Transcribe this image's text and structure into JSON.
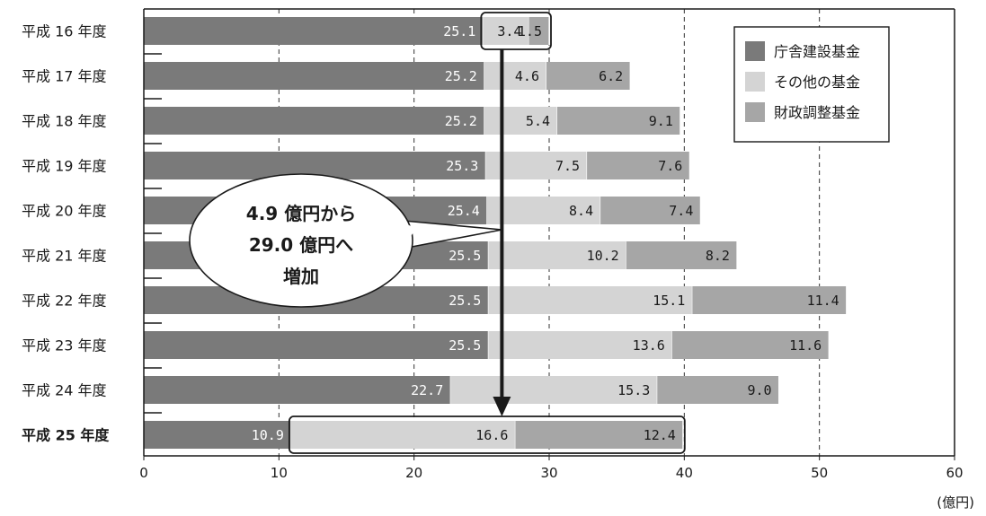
{
  "chart_data": {
    "type": "bar",
    "orientation": "horizontal",
    "stacked": true,
    "categories": [
      "平成 16 年度",
      "平成 17 年度",
      "平成 18 年度",
      "平成 19 年度",
      "平成 20 年度",
      "平成 21 年度",
      "平成 22 年度",
      "平成 23 年度",
      "平成 24 年度",
      "平成 25 年度"
    ],
    "highlight_category": "平成 25 年度",
    "series": [
      {
        "name": "庁舎建設基金",
        "color": "#7a7a7a",
        "label_color": "#ffffff",
        "values": [
          25.1,
          25.2,
          25.2,
          25.3,
          25.4,
          25.5,
          25.5,
          25.5,
          22.7,
          10.9
        ],
        "labels": [
          "25.1",
          "25.2",
          "25.2",
          "25.3",
          "25.4",
          "25.5",
          "25.5",
          "25.5",
          "22.7",
          "10.9"
        ]
      },
      {
        "name": "その他の基金",
        "color": "#d4d4d4",
        "label_color": "#1a1a1a",
        "values": [
          3.4,
          4.6,
          5.4,
          7.5,
          8.4,
          10.2,
          15.1,
          13.6,
          15.3,
          16.6
        ],
        "labels": [
          "3.4",
          "4.6",
          "5.4",
          "7.5",
          "8.4",
          "10.2",
          "15.1",
          "13.6",
          "15.3",
          "16.6"
        ]
      },
      {
        "name": "財政調整基金",
        "color": "#a6a6a6",
        "label_color": "#1a1a1a",
        "values": [
          1.5,
          6.2,
          9.1,
          7.6,
          7.4,
          8.2,
          11.4,
          11.6,
          9.0,
          12.4
        ],
        "labels": [
          "1.5",
          "6.2",
          "9.1",
          "7.6",
          "7.4",
          "8.2",
          "11.4",
          "11.6",
          "9.0",
          "12.4"
        ]
      }
    ],
    "xlim": [
      0,
      60
    ],
    "xticks": [
      "0",
      "10",
      "20",
      "30",
      "40",
      "50",
      "60"
    ],
    "xunit": "(億円)",
    "grid": "vertical dashed",
    "legend_position": "top-right",
    "annotation": {
      "lines": [
        "4.9 億円から",
        "29.0 億円へ",
        "増加"
      ],
      "arrow_x_value": 26.5
    }
  }
}
